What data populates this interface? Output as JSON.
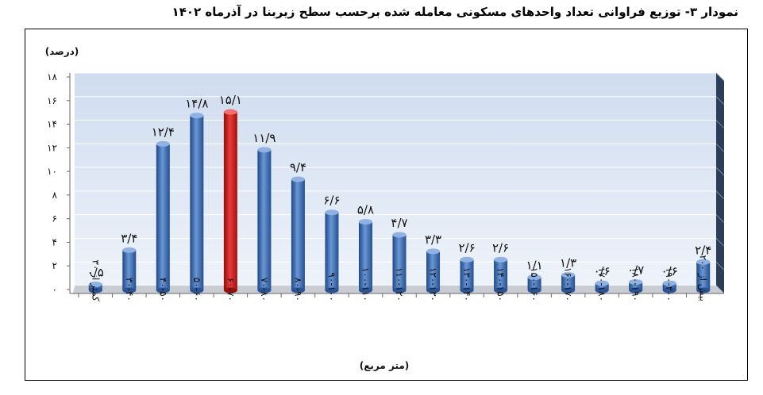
{
  "chart_data": {
    "type": "bar",
    "title": "نمودار ۳- توزیع فراوانی تعداد واحدهای مسکونی معامله شده برحسب سطح زیربنا در آذرماه ۱۴۰۲",
    "ylabel": "(درصد)",
    "xlabel": "(متر مربع)",
    "ylim": [
      0,
      18
    ],
    "yticks": [
      0,
      2,
      4,
      6,
      8,
      10,
      12,
      14,
      16,
      18
    ],
    "ytick_labels": [
      "۰",
      "۲",
      "۴",
      "۶",
      "۸",
      "۱۰",
      "۱۲",
      "۱۴",
      "۱۶",
      "۱۸"
    ],
    "grid": true,
    "categories": [
      "کمتر از ۳۰",
      "۳۰-۴۰",
      "۴۰-۵۰",
      "۵۰-۶۰",
      "۶۰-۷۰",
      "۷۰-۸۰",
      "۸۰-۹۰",
      "۹۰-۱۰۰",
      "۱۰۰-۱۱۰",
      "۱۱۰-۱۲۰",
      "۱۲۰-۱۳۰",
      "۱۳۰-۱۴۰",
      "۱۴۰-۱۵۰",
      "۱۵۰-۱۶۰",
      "۱۶۰-۱۷۰",
      "۱۷۰-۱۸۰",
      "۱۸۰-۱۹۰",
      "۱۹۰-۲۰۰",
      "بیش از ۲۰۰"
    ],
    "values": [
      0.5,
      3.4,
      12.4,
      14.8,
      15.1,
      11.9,
      9.4,
      6.6,
      5.8,
      4.7,
      3.3,
      2.6,
      2.6,
      1.1,
      1.3,
      0.6,
      0.7,
      0.6,
      2.4
    ],
    "value_labels": [
      "۰/۵",
      "۳/۴",
      "۱۲/۴",
      "۱۴/۸",
      "۱۵/۱",
      "۱۱/۹",
      "۹/۴",
      "۶/۶",
      "۵/۸",
      "۴/۷",
      "۳/۳",
      "۲/۶",
      "۲/۶",
      "۱/۱",
      "۱/۳",
      "۰/۶",
      "۰/۷",
      "۰/۶",
      "۲/۴"
    ],
    "highlight_index": 4,
    "colors": {
      "bar": "#3f6fb5",
      "bar_highlight": "#cc1b1b",
      "plot_bg": "#dde6f3",
      "grid": "#ffffff"
    }
  }
}
